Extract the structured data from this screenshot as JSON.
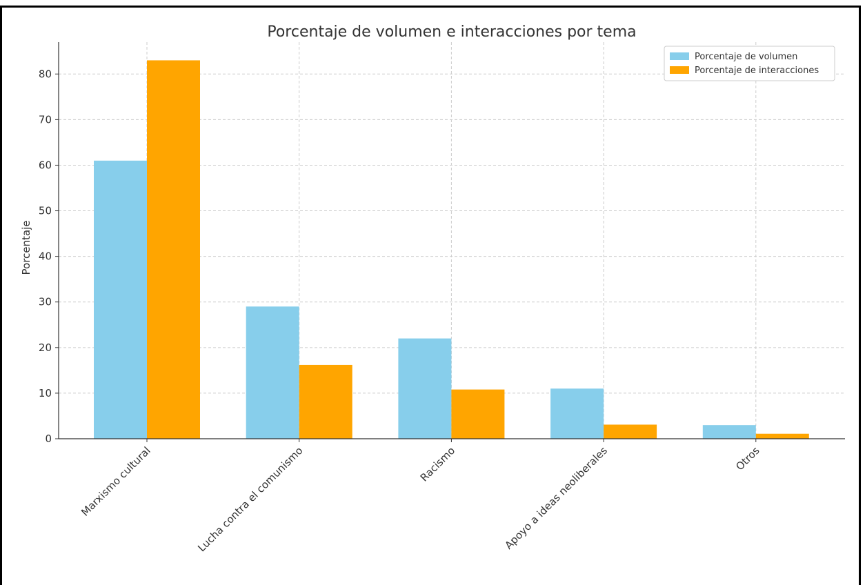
{
  "chart_data": {
    "type": "bar",
    "title": "Porcentaje de volumen e interacciones por tema",
    "xlabel": "",
    "ylabel": "Porcentaje",
    "categories": [
      "Marxismo cultural",
      "Lucha contra el comunismo",
      "Racismo",
      "Apoyo a ideas neoliberales",
      "Otros"
    ],
    "series": [
      {
        "name": "Porcentaje de volumen",
        "color": "#87ceeb",
        "values": [
          61,
          29,
          22,
          11,
          3
        ]
      },
      {
        "name": "Porcentaje de interacciones",
        "color": "#ffa500",
        "values": [
          83,
          16.2,
          10.8,
          3.1,
          1.1
        ]
      }
    ],
    "ylim": [
      0,
      87
    ],
    "yticks": [
      0,
      10,
      20,
      30,
      40,
      50,
      60,
      70,
      80
    ],
    "grid": true,
    "legend_position": "top-right"
  }
}
